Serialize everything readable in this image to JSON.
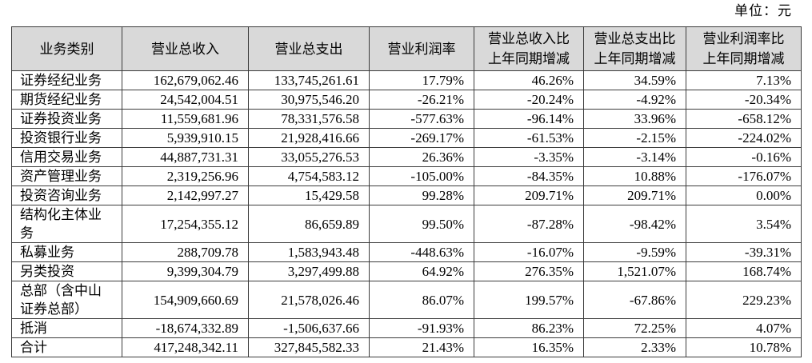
{
  "unit_label": "单位：元",
  "table": {
    "columns": [
      {
        "key": "category",
        "header": "业务类别",
        "align": "left"
      },
      {
        "key": "revenue",
        "header": "营业总收入",
        "align": "right"
      },
      {
        "key": "expense",
        "header": "营业总支出",
        "align": "right"
      },
      {
        "key": "margin",
        "header": "营业利润率",
        "align": "right"
      },
      {
        "key": "revenue_yoy",
        "header": "营业总收入比\n上年同期增减",
        "align": "right"
      },
      {
        "key": "expense_yoy",
        "header": "营业总支出比\n上年同期增减",
        "align": "right"
      },
      {
        "key": "margin_yoy",
        "header": "营业利润率比\n上年同期增减",
        "align": "right"
      }
    ],
    "rows": [
      {
        "category": "证券经纪业务",
        "revenue": "162,679,062.46",
        "expense": "133,745,261.61",
        "margin": "17.79%",
        "revenue_yoy": "46.26%",
        "expense_yoy": "34.59%",
        "margin_yoy": "7.13%"
      },
      {
        "category": "期货经纪业务",
        "revenue": "24,542,004.51",
        "expense": "30,975,546.20",
        "margin": "-26.21%",
        "revenue_yoy": "-20.24%",
        "expense_yoy": "-4.92%",
        "margin_yoy": "-20.34%"
      },
      {
        "category": "证券投资业务",
        "revenue": "11,559,681.96",
        "expense": "78,331,576.58",
        "margin": "-577.63%",
        "revenue_yoy": "-96.14%",
        "expense_yoy": "33.96%",
        "margin_yoy": "-658.12%"
      },
      {
        "category": "投资银行业务",
        "revenue": "5,939,910.15",
        "expense": "21,928,416.66",
        "margin": "-269.17%",
        "revenue_yoy": "-61.53%",
        "expense_yoy": "-2.15%",
        "margin_yoy": "-224.02%"
      },
      {
        "category": "信用交易业务",
        "revenue": "44,887,731.31",
        "expense": "33,055,276.53",
        "margin": "26.36%",
        "revenue_yoy": "-3.35%",
        "expense_yoy": "-3.14%",
        "margin_yoy": "-0.16%"
      },
      {
        "category": "资产管理业务",
        "revenue": "2,319,256.96",
        "expense": "4,754,583.12",
        "margin": "-105.00%",
        "revenue_yoy": "-84.35%",
        "expense_yoy": "10.88%",
        "margin_yoy": "-176.07%"
      },
      {
        "category": "投资咨询业务",
        "revenue": "2,142,997.27",
        "expense": "15,429.58",
        "margin": "99.28%",
        "revenue_yoy": "209.71%",
        "expense_yoy": "209.71%",
        "margin_yoy": "0.00%"
      },
      {
        "category": "结构化主体业\n务",
        "revenue": "17,254,355.12",
        "expense": "86,659.89",
        "margin": "99.50%",
        "revenue_yoy": "-87.28%",
        "expense_yoy": "-98.42%",
        "margin_yoy": "3.54%"
      },
      {
        "category": "私募业务",
        "revenue": "288,709.78",
        "expense": "1,583,943.48",
        "margin": "-448.63%",
        "revenue_yoy": "-16.07%",
        "expense_yoy": "-9.59%",
        "margin_yoy": "-39.31%"
      },
      {
        "category": "另类投资",
        "revenue": "9,399,304.79",
        "expense": "3,297,499.88",
        "margin": "64.92%",
        "revenue_yoy": "276.35%",
        "expense_yoy": "1,521.07%",
        "margin_yoy": "168.74%"
      },
      {
        "category": "总部（含中山\n证券总部）",
        "revenue": "154,909,660.69",
        "expense": "21,578,026.46",
        "margin": "86.07%",
        "revenue_yoy": "199.57%",
        "expense_yoy": "-67.86%",
        "margin_yoy": "229.23%"
      },
      {
        "category": "抵消",
        "revenue": "-18,674,332.89",
        "expense": "-1,506,637.66",
        "margin": "-91.93%",
        "revenue_yoy": "86.23%",
        "expense_yoy": "72.25%",
        "margin_yoy": "4.07%"
      },
      {
        "category": "合计",
        "revenue": "417,248,342.11",
        "expense": "327,845,582.33",
        "margin": "21.43%",
        "revenue_yoy": "16.35%",
        "expense_yoy": "2.33%",
        "margin_yoy": "10.78%"
      }
    ]
  }
}
